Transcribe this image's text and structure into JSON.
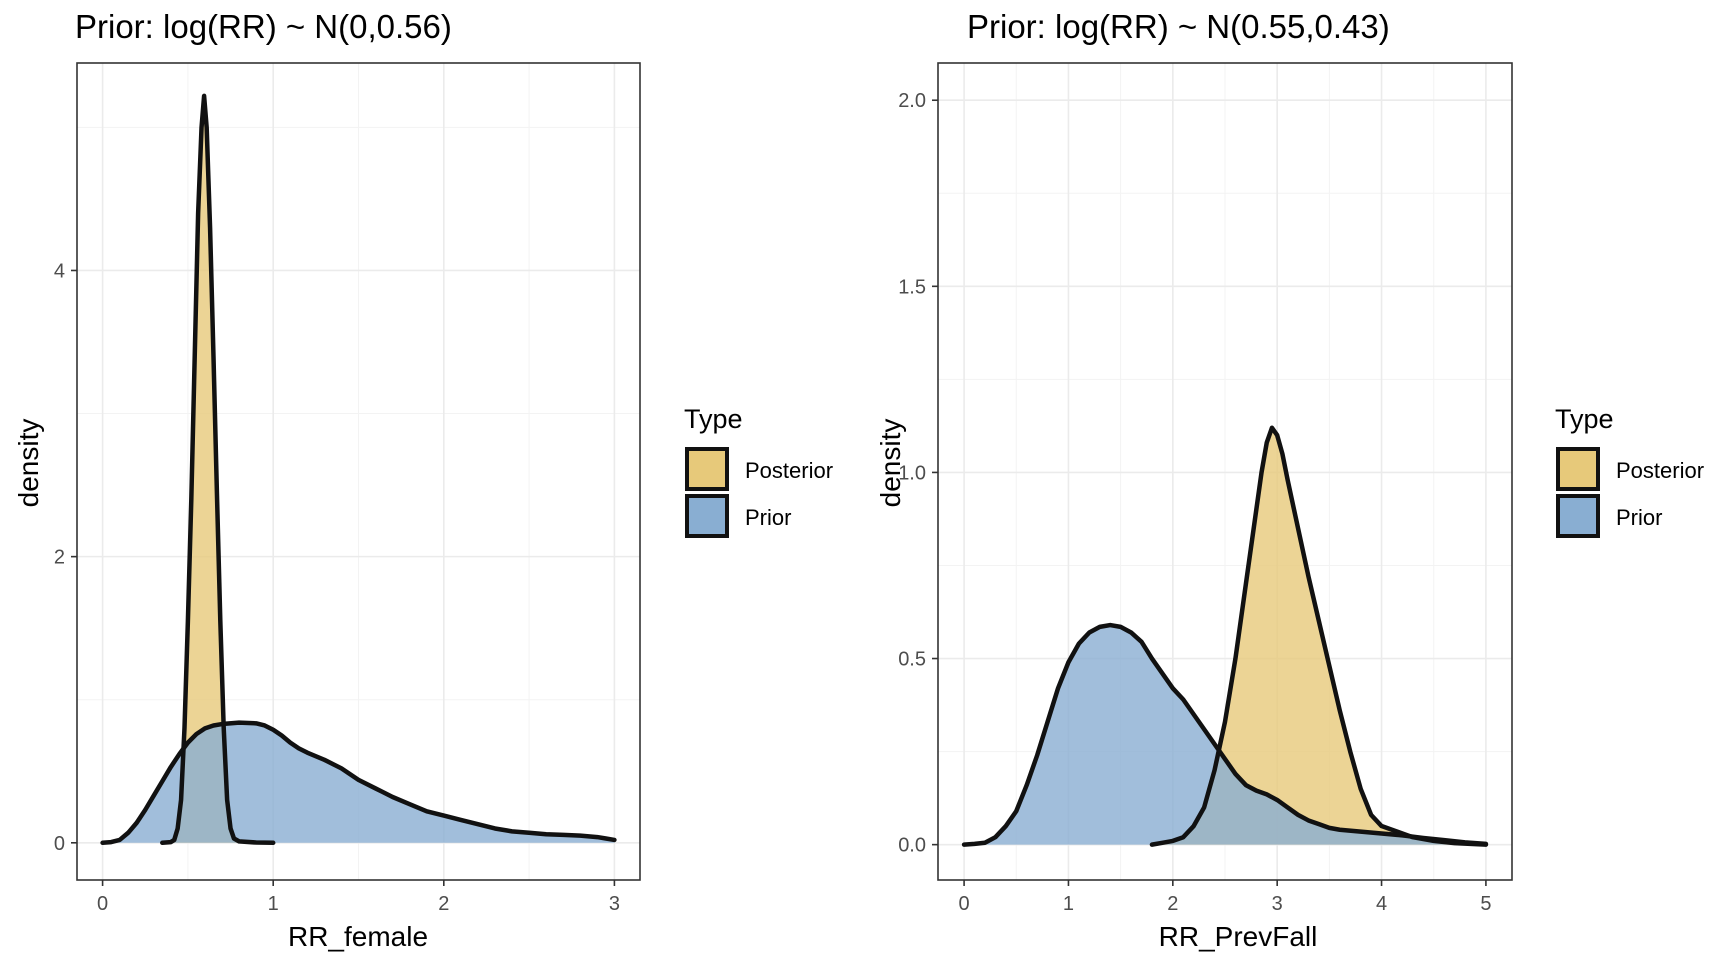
{
  "chart_data": [
    {
      "type": "area",
      "title": "Prior: log(RR) ~ N(0,0.56)",
      "xlabel": "RR_female",
      "ylabel": "density",
      "xlim": [
        -0.15,
        3.15
      ],
      "ylim": [
        -0.26,
        5.45
      ],
      "x_ticks": [
        0,
        1,
        2,
        3
      ],
      "y_ticks": [
        0,
        2,
        4
      ],
      "grid": true,
      "legend": {
        "title": "Type",
        "position": "right",
        "entries": [
          {
            "label": "Posterior",
            "color": "#E7C97A"
          },
          {
            "label": "Prior",
            "color": "#89AED2"
          }
        ]
      },
      "series": [
        {
          "name": "Posterior",
          "color": "#E7C97A",
          "points": [
            [
              0.35,
              0
            ],
            [
              0.4,
              0.005
            ],
            [
              0.42,
              0.02
            ],
            [
              0.44,
              0.1
            ],
            [
              0.46,
              0.3
            ],
            [
              0.48,
              0.8
            ],
            [
              0.5,
              1.55
            ],
            [
              0.52,
              2.4
            ],
            [
              0.54,
              3.4
            ],
            [
              0.56,
              4.4
            ],
            [
              0.58,
              5.0
            ],
            [
              0.595,
              5.22
            ],
            [
              0.61,
              5.0
            ],
            [
              0.63,
              4.3
            ],
            [
              0.65,
              3.4
            ],
            [
              0.67,
              2.45
            ],
            [
              0.69,
              1.55
            ],
            [
              0.71,
              0.8
            ],
            [
              0.73,
              0.3
            ],
            [
              0.75,
              0.1
            ],
            [
              0.77,
              0.03
            ],
            [
              0.8,
              0.01
            ],
            [
              0.9,
              0.002
            ],
            [
              1.0,
              0
            ]
          ]
        },
        {
          "name": "Prior",
          "color": "#89AED2",
          "points": [
            [
              0.0,
              0.0
            ],
            [
              0.05,
              0.005
            ],
            [
              0.1,
              0.02
            ],
            [
              0.15,
              0.07
            ],
            [
              0.2,
              0.14
            ],
            [
              0.25,
              0.23
            ],
            [
              0.3,
              0.33
            ],
            [
              0.35,
              0.43
            ],
            [
              0.4,
              0.53
            ],
            [
              0.45,
              0.62
            ],
            [
              0.5,
              0.7
            ],
            [
              0.55,
              0.76
            ],
            [
              0.6,
              0.8
            ],
            [
              0.65,
              0.82
            ],
            [
              0.7,
              0.83
            ],
            [
              0.8,
              0.84
            ],
            [
              0.9,
              0.835
            ],
            [
              0.95,
              0.82
            ],
            [
              1.0,
              0.79
            ],
            [
              1.05,
              0.75
            ],
            [
              1.1,
              0.7
            ],
            [
              1.15,
              0.66
            ],
            [
              1.2,
              0.63
            ],
            [
              1.3,
              0.58
            ],
            [
              1.4,
              0.52
            ],
            [
              1.5,
              0.44
            ],
            [
              1.6,
              0.38
            ],
            [
              1.7,
              0.32
            ],
            [
              1.8,
              0.27
            ],
            [
              1.9,
              0.22
            ],
            [
              2.0,
              0.19
            ],
            [
              2.1,
              0.16
            ],
            [
              2.2,
              0.13
            ],
            [
              2.3,
              0.1
            ],
            [
              2.4,
              0.08
            ],
            [
              2.5,
              0.07
            ],
            [
              2.6,
              0.06
            ],
            [
              2.7,
              0.055
            ],
            [
              2.8,
              0.05
            ],
            [
              2.9,
              0.04
            ],
            [
              2.95,
              0.03
            ],
            [
              3.0,
              0.02
            ]
          ]
        }
      ]
    },
    {
      "type": "area",
      "title": "Prior: log(RR) ~ N(0.55,0.43)",
      "xlabel": "RR_PrevFall",
      "ylabel": "density",
      "xlim": [
        -0.25,
        5.25
      ],
      "ylim": [
        -0.095,
        2.1
      ],
      "x_ticks": [
        0,
        1,
        2,
        3,
        4,
        5
      ],
      "y_ticks": [
        0.0,
        0.5,
        1.0,
        1.5,
        2.0
      ],
      "y_tick_labels": [
        "0.0",
        "0.5",
        "1.0",
        "1.5",
        "2.0"
      ],
      "grid": true,
      "legend": {
        "title": "Type",
        "position": "right",
        "entries": [
          {
            "label": "Posterior",
            "color": "#E7C97A"
          },
          {
            "label": "Prior",
            "color": "#89AED2"
          }
        ]
      },
      "series": [
        {
          "name": "Posterior",
          "color": "#E7C97A",
          "points": [
            [
              1.8,
              0
            ],
            [
              1.9,
              0.005
            ],
            [
              2.0,
              0.01
            ],
            [
              2.1,
              0.02
            ],
            [
              2.2,
              0.05
            ],
            [
              2.3,
              0.1
            ],
            [
              2.4,
              0.2
            ],
            [
              2.5,
              0.33
            ],
            [
              2.6,
              0.5
            ],
            [
              2.7,
              0.7
            ],
            [
              2.8,
              0.9
            ],
            [
              2.85,
              1.0
            ],
            [
              2.9,
              1.08
            ],
            [
              2.95,
              1.12
            ],
            [
              3.0,
              1.1
            ],
            [
              3.05,
              1.05
            ],
            [
              3.1,
              0.98
            ],
            [
              3.2,
              0.85
            ],
            [
              3.3,
              0.72
            ],
            [
              3.4,
              0.6
            ],
            [
              3.5,
              0.48
            ],
            [
              3.6,
              0.36
            ],
            [
              3.7,
              0.25
            ],
            [
              3.8,
              0.15
            ],
            [
              3.9,
              0.08
            ],
            [
              4.0,
              0.05
            ],
            [
              4.1,
              0.04
            ],
            [
              4.2,
              0.03
            ],
            [
              4.3,
              0.02
            ],
            [
              4.5,
              0.01
            ],
            [
              4.7,
              0.004
            ],
            [
              5.0,
              0
            ]
          ]
        },
        {
          "name": "Prior",
          "color": "#89AED2",
          "points": [
            [
              0.0,
              0
            ],
            [
              0.1,
              0.002
            ],
            [
              0.2,
              0.005
            ],
            [
              0.3,
              0.02
            ],
            [
              0.4,
              0.05
            ],
            [
              0.5,
              0.09
            ],
            [
              0.6,
              0.16
            ],
            [
              0.7,
              0.24
            ],
            [
              0.8,
              0.33
            ],
            [
              0.9,
              0.42
            ],
            [
              1.0,
              0.49
            ],
            [
              1.1,
              0.54
            ],
            [
              1.2,
              0.57
            ],
            [
              1.3,
              0.585
            ],
            [
              1.4,
              0.59
            ],
            [
              1.5,
              0.585
            ],
            [
              1.6,
              0.57
            ],
            [
              1.7,
              0.545
            ],
            [
              1.8,
              0.5
            ],
            [
              1.9,
              0.46
            ],
            [
              2.0,
              0.42
            ],
            [
              2.1,
              0.39
            ],
            [
              2.2,
              0.35
            ],
            [
              2.3,
              0.31
            ],
            [
              2.4,
              0.27
            ],
            [
              2.5,
              0.23
            ],
            [
              2.6,
              0.19
            ],
            [
              2.7,
              0.16
            ],
            [
              2.8,
              0.145
            ],
            [
              2.9,
              0.135
            ],
            [
              3.0,
              0.12
            ],
            [
              3.1,
              0.1
            ],
            [
              3.2,
              0.08
            ],
            [
              3.3,
              0.065
            ],
            [
              3.4,
              0.055
            ],
            [
              3.5,
              0.045
            ],
            [
              3.6,
              0.04
            ],
            [
              3.8,
              0.035
            ],
            [
              4.0,
              0.03
            ],
            [
              4.2,
              0.025
            ],
            [
              4.4,
              0.018
            ],
            [
              4.6,
              0.012
            ],
            [
              4.8,
              0.006
            ],
            [
              5.0,
              0.002
            ]
          ]
        }
      ]
    }
  ]
}
